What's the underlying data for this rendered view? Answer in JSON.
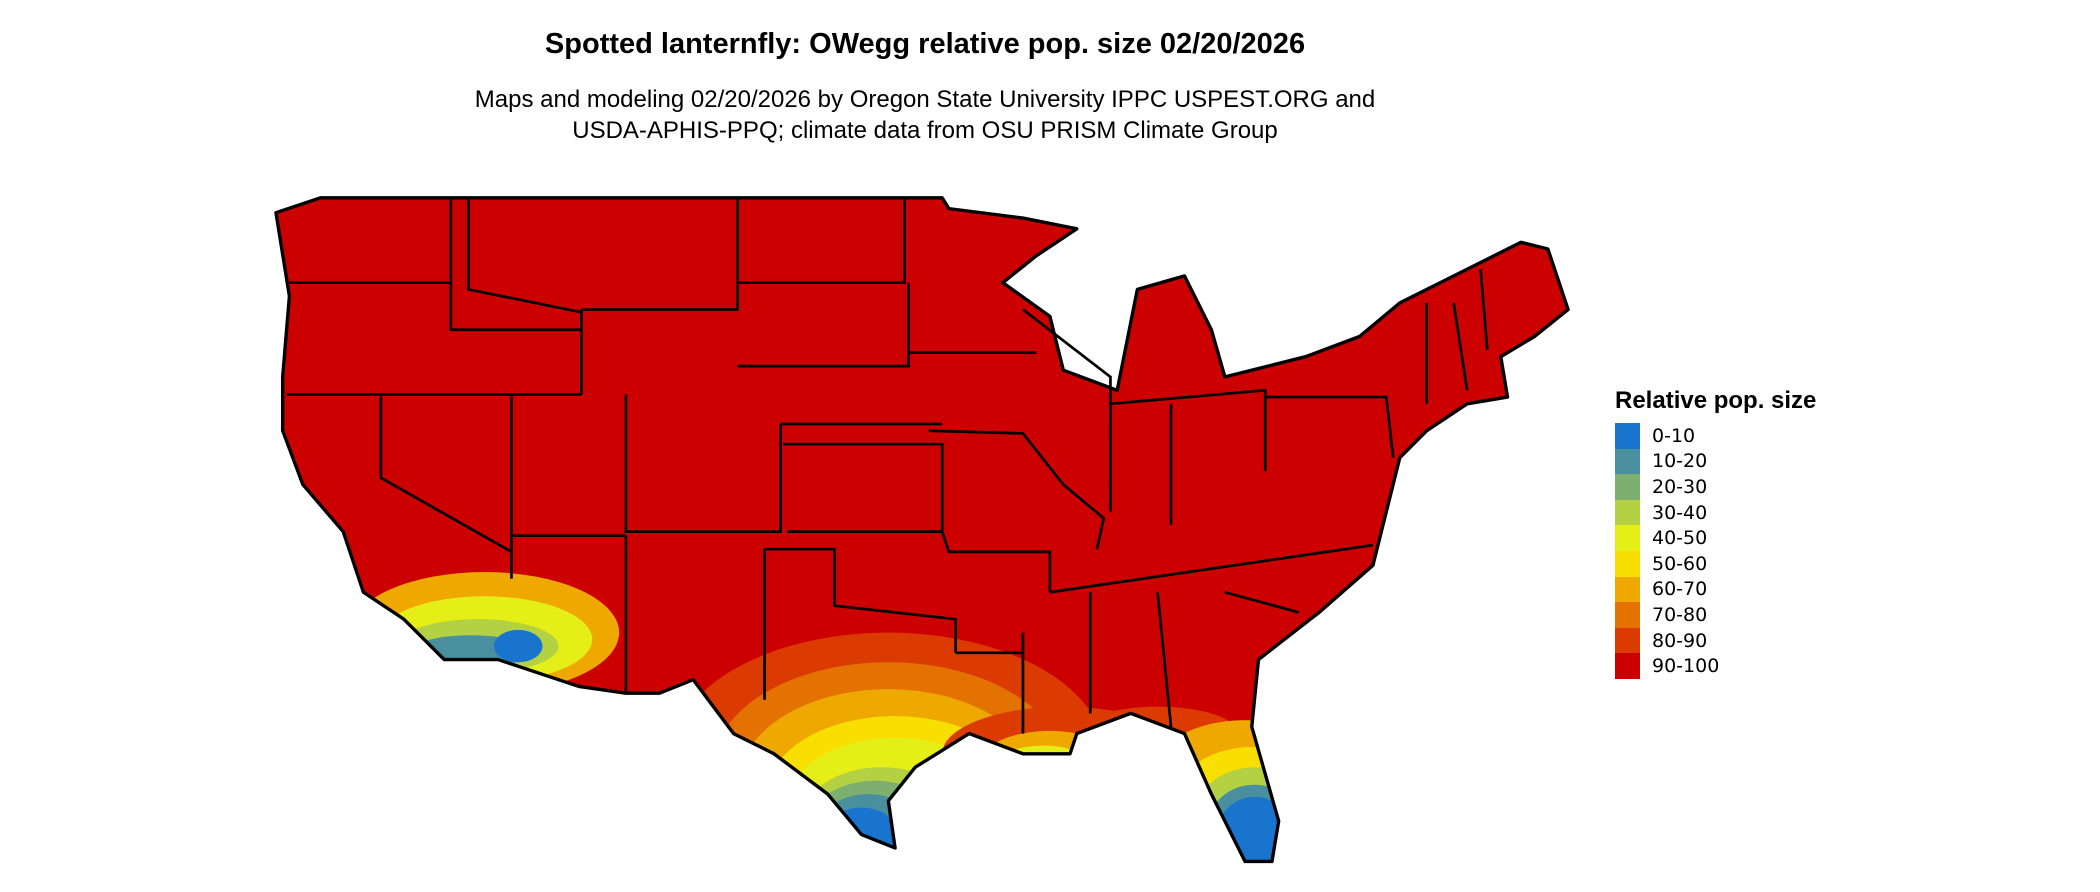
{
  "title": "Spotted lanternfly: OWegg relative pop. size 02/20/2026",
  "subtitle_line1": "Maps and modeling 02/20/2026 by Oregon State University IPPC USPEST.ORG and",
  "subtitle_line2": "USDA-APHIS-PPQ; climate data from OSU PRISM Climate Group",
  "legend": {
    "title": "Relative pop. size",
    "items": [
      {
        "label": "0-10",
        "color": "#1874CD"
      },
      {
        "label": "10-20",
        "color": "#4A8F9E"
      },
      {
        "label": "20-30",
        "color": "#7DAF70"
      },
      {
        "label": "30-40",
        "color": "#B3D143"
      },
      {
        "label": "40-50",
        "color": "#E5EE17"
      },
      {
        "label": "50-60",
        "color": "#F9DF00"
      },
      {
        "label": "60-70",
        "color": "#EFA800"
      },
      {
        "label": "70-80",
        "color": "#E37200"
      },
      {
        "label": "80-90",
        "color": "#DB3A00"
      },
      {
        "label": "90-100",
        "color": "#CD0000"
      }
    ]
  }
}
